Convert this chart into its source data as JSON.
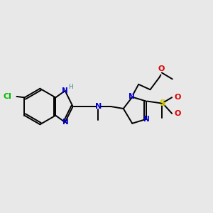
{
  "background_color": "#e8e8e8",
  "fig_size": [
    3.0,
    3.0
  ],
  "dpi": 100,
  "bond_color": "#000000",
  "bond_width": 1.4,
  "N_color": "#0000cc",
  "Cl_color": "#00bb00",
  "O_color": "#dd0000",
  "S_color": "#cccc00",
  "H_color": "#448888",
  "xlim": [
    0,
    1
  ],
  "ylim": [
    0,
    1
  ]
}
